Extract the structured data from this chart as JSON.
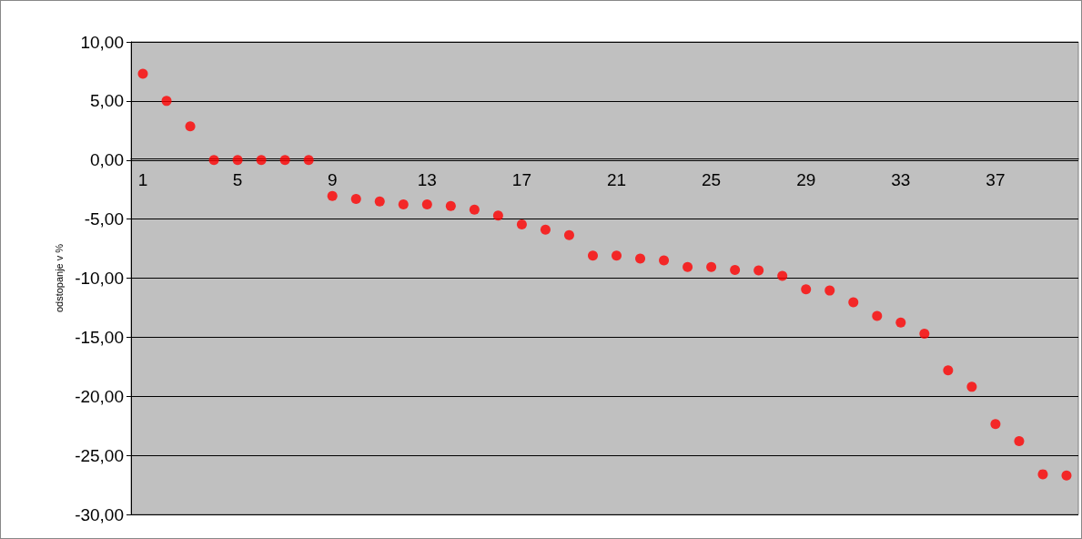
{
  "chart_data": {
    "type": "scatter",
    "ylabel": "odstopanje v %",
    "categories": [
      "1",
      null,
      null,
      null,
      "5",
      null,
      null,
      null,
      "9",
      null,
      null,
      null,
      "13",
      null,
      null,
      null,
      "17",
      null,
      null,
      null,
      "21",
      null,
      null,
      null,
      "25",
      null,
      null,
      null,
      "29",
      null,
      null,
      null,
      "33",
      null,
      null,
      null,
      "37",
      null,
      null,
      null
    ],
    "series": [
      {
        "color": "#ff0000",
        "values": [
          7.3,
          5.0,
          2.85,
          0,
          0,
          0,
          0,
          0,
          -3.05,
          -3.3,
          -3.5,
          -3.75,
          -3.75,
          -3.9,
          -4.2,
          -4.7,
          -5.45,
          -5.9,
          -6.35,
          -8.1,
          -8.1,
          -8.35,
          -8.5,
          -9.05,
          -9.05,
          -9.3,
          -9.35,
          -9.8,
          -10.95,
          -11.05,
          -12.05,
          -13.2,
          -13.75,
          -14.7,
          -17.8,
          -19.2,
          -22.35,
          -23.8,
          -26.6,
          -26.7
        ]
      }
    ],
    "ylim": [
      -30,
      10
    ],
    "yticks": [
      {
        "value": -30,
        "label": "-30,00"
      },
      {
        "value": -25,
        "label": "-25,00"
      },
      {
        "value": -20,
        "label": "-20,00"
      },
      {
        "value": -15,
        "label": "-15,00"
      },
      {
        "value": -10,
        "label": "-10,00"
      },
      {
        "value": -5,
        "label": "-5,00"
      },
      {
        "value": 0,
        "label": "0,00"
      },
      {
        "value": 5,
        "label": "5,00"
      },
      {
        "value": 10,
        "label": "10,00"
      }
    ],
    "grid": "y",
    "marker": "circle"
  }
}
